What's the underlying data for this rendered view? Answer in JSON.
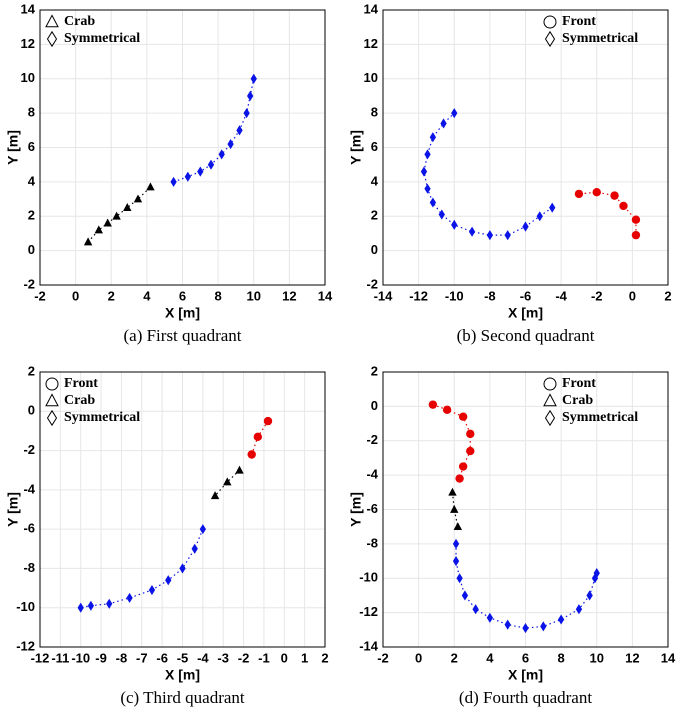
{
  "chart_data": [
    {
      "type": "scatter",
      "caption": "(a) First quadrant",
      "xlabel": "X [m]",
      "ylabel": "Y [m]",
      "xlim": [
        -2,
        14
      ],
      "ylim": [
        -2,
        14
      ],
      "xticks": [
        -2,
        0,
        2,
        4,
        6,
        8,
        10,
        12,
        14
      ],
      "yticks": [
        -2,
        0,
        2,
        4,
        6,
        8,
        10,
        12,
        14
      ],
      "grid": true,
      "legend": "upper left",
      "series": [
        {
          "name": "Crab",
          "color": "#000000",
          "marker": "triangle",
          "x": [
            0.7,
            1.3,
            1.8,
            2.3,
            2.9,
            3.5,
            4.2
          ],
          "values": [
            0.5,
            1.2,
            1.6,
            2.0,
            2.5,
            3.0,
            3.7
          ]
        },
        {
          "name": "Symmetrical",
          "color": "#0a14e6",
          "marker": "diamond",
          "x": [
            5.5,
            6.3,
            7.0,
            7.6,
            8.2,
            8.7,
            9.2,
            9.6,
            9.8,
            10.0
          ],
          "values": [
            4.0,
            4.3,
            4.6,
            5.0,
            5.6,
            6.2,
            7.0,
            8.0,
            9.0,
            10.0
          ]
        }
      ]
    },
    {
      "type": "scatter",
      "caption": "(b) Second quadrant",
      "xlabel": "X [m]",
      "ylabel": "Y [m]",
      "xlim": [
        -14,
        2
      ],
      "ylim": [
        -2,
        14
      ],
      "xticks": [
        -14,
        -12,
        -10,
        -8,
        -6,
        -4,
        -2,
        0,
        2
      ],
      "yticks": [
        -2,
        0,
        2,
        4,
        6,
        8,
        10,
        12,
        14
      ],
      "grid": true,
      "legend": "upper right",
      "series": [
        {
          "name": "Front",
          "color": "#e60000",
          "marker": "circle",
          "x": [
            0.2,
            0.2,
            -0.5,
            -1.0,
            -2.0,
            -3.0
          ],
          "values": [
            0.9,
            1.8,
            2.6,
            3.2,
            3.4,
            3.3
          ]
        },
        {
          "name": "Symmetrical",
          "color": "#0a14e6",
          "marker": "diamond",
          "x": [
            -4.5,
            -5.2,
            -6.0,
            -7.0,
            -8.0,
            -9.0,
            -10.0,
            -10.7,
            -11.2,
            -11.5,
            -11.7,
            -11.5,
            -11.2,
            -10.6,
            -10.0
          ],
          "values": [
            2.5,
            2.0,
            1.4,
            0.9,
            0.9,
            1.1,
            1.5,
            2.1,
            2.8,
            3.6,
            4.6,
            5.6,
            6.6,
            7.4,
            8.0
          ]
        }
      ]
    },
    {
      "type": "scatter",
      "caption": "(c) Third quadrant",
      "xlabel": "X [m]",
      "ylabel": "Y [m]",
      "xlim": [
        -12,
        2
      ],
      "ylim": [
        -12,
        2
      ],
      "xticks": [
        -12,
        -11,
        -10,
        -9,
        -8,
        -7,
        -6,
        -5,
        -4,
        -3,
        -2,
        -1,
        0,
        1,
        2
      ],
      "yticks": [
        -12,
        -10,
        -8,
        -6,
        -4,
        -2,
        0,
        2
      ],
      "grid": true,
      "legend": "upper left",
      "series": [
        {
          "name": "Front",
          "color": "#e60000",
          "marker": "circle",
          "x": [
            -0.8,
            -1.3,
            -1.6
          ],
          "values": [
            -0.5,
            -1.3,
            -2.2
          ]
        },
        {
          "name": "Crab",
          "color": "#000000",
          "marker": "triangle",
          "x": [
            -2.2,
            -2.8,
            -3.4
          ],
          "values": [
            -3.0,
            -3.6,
            -4.3
          ]
        },
        {
          "name": "Symmetrical",
          "color": "#0a14e6",
          "marker": "diamond",
          "x": [
            -4.0,
            -4.4,
            -5.0,
            -5.7,
            -6.5,
            -7.6,
            -8.6,
            -9.5,
            -10.0
          ],
          "values": [
            -6.0,
            -7.0,
            -8.0,
            -8.6,
            -9.1,
            -9.5,
            -9.8,
            -9.9,
            -10.0
          ]
        }
      ]
    },
    {
      "type": "scatter",
      "caption": "(d) Fourth quadrant",
      "xlabel": "X [m]",
      "ylabel": "Y [m]",
      "xlim": [
        -2,
        14
      ],
      "ylim": [
        -14,
        2
      ],
      "xticks": [
        -2,
        0,
        2,
        4,
        6,
        8,
        10,
        12,
        14
      ],
      "yticks": [
        -14,
        -12,
        -10,
        -8,
        -6,
        -4,
        -2,
        0,
        2
      ],
      "grid": true,
      "legend": "upper right",
      "series": [
        {
          "name": "Front",
          "color": "#e60000",
          "marker": "circle",
          "x": [
            0.8,
            1.6,
            2.5,
            2.9,
            2.9,
            2.5,
            2.3
          ],
          "values": [
            0.1,
            -0.2,
            -0.6,
            -1.6,
            -2.6,
            -3.5,
            -4.2
          ]
        },
        {
          "name": "Crab",
          "color": "#000000",
          "marker": "triangle",
          "x": [
            1.9,
            2.0,
            2.2
          ],
          "values": [
            -5.0,
            -6.0,
            -7.0
          ]
        },
        {
          "name": "Symmetrical",
          "color": "#0a14e6",
          "marker": "diamond",
          "x": [
            2.1,
            2.1,
            2.3,
            2.6,
            3.2,
            4.0,
            5.0,
            6.0,
            7.0,
            8.0,
            9.0,
            9.6,
            9.9,
            10.0
          ],
          "values": [
            -8.0,
            -9.0,
            -10.0,
            -11.0,
            -11.8,
            -12.3,
            -12.7,
            -12.9,
            -12.8,
            -12.4,
            -11.8,
            -11.0,
            -10.0,
            -9.7
          ]
        }
      ]
    }
  ]
}
